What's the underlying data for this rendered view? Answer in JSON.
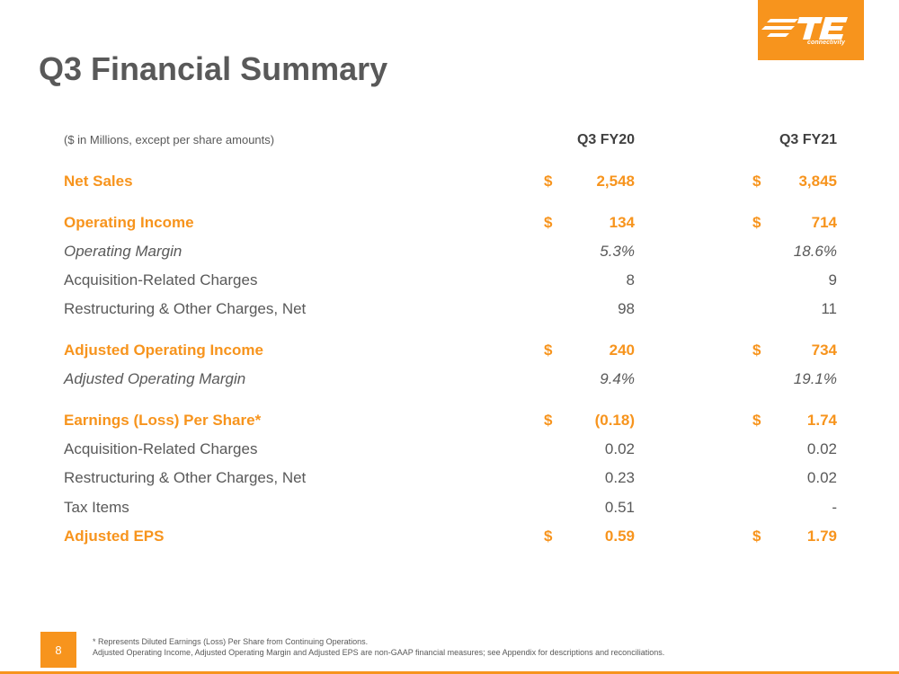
{
  "logo": {
    "brand": "TE",
    "tagline": "connectivity",
    "color": "#f7941d"
  },
  "title": "Q3 Financial Summary",
  "table": {
    "units_note": "($ in Millions, except per share amounts)",
    "columns": [
      "Q3 FY20",
      "Q3 FY21"
    ],
    "rows": [
      {
        "label": "Net Sales",
        "style": "highlight",
        "dollar": "$",
        "v1": "2,548",
        "v2": "3,845"
      },
      {
        "label": "Operating Income",
        "style": "highlight",
        "dollar": "$",
        "v1": "134",
        "v2": "714"
      },
      {
        "label": "Operating Margin",
        "style": "italic",
        "dollar": "",
        "v1": "5.3%",
        "v2": "18.6%"
      },
      {
        "label": "Acquisition-Related Charges",
        "style": "normal",
        "dollar": "",
        "v1": "8",
        "v2": "9"
      },
      {
        "label": "Restructuring & Other Charges, Net",
        "style": "normal",
        "dollar": "",
        "v1": "98",
        "v2": "11"
      },
      {
        "label": "Adjusted Operating Income",
        "style": "highlight",
        "dollar": "$",
        "v1": "240",
        "v2": "734"
      },
      {
        "label": "Adjusted Operating Margin",
        "style": "italic",
        "dollar": "",
        "v1": "9.4%",
        "v2": "19.1%"
      },
      {
        "label": "Earnings (Loss) Per Share*",
        "style": "highlight",
        "dollar": "$",
        "v1": "(0.18)",
        "v2": "1.74"
      },
      {
        "label": "Acquisition-Related Charges",
        "style": "normal",
        "dollar": "",
        "v1": "0.02",
        "v2": "0.02"
      },
      {
        "label": "Restructuring & Other Charges, Net",
        "style": "normal",
        "dollar": "",
        "v1": "0.23",
        "v2": "0.02"
      },
      {
        "label": "Tax Items",
        "style": "normal",
        "dollar": "",
        "v1": "0.51",
        "v2": "-"
      },
      {
        "label": "Adjusted EPS",
        "style": "highlight",
        "dollar": "$",
        "v1": "0.59",
        "v2": "1.79"
      }
    ]
  },
  "footer": {
    "page_number": "8",
    "note1": "*  Represents Diluted Earnings (Loss) Per Share from Continuing Operations.",
    "note2": "Adjusted Operating Income, Adjusted Operating Margin and Adjusted EPS are non-GAAP financial measures; see Appendix for descriptions and reconciliations."
  },
  "colors": {
    "accent": "#f7941d",
    "text": "#595959"
  }
}
